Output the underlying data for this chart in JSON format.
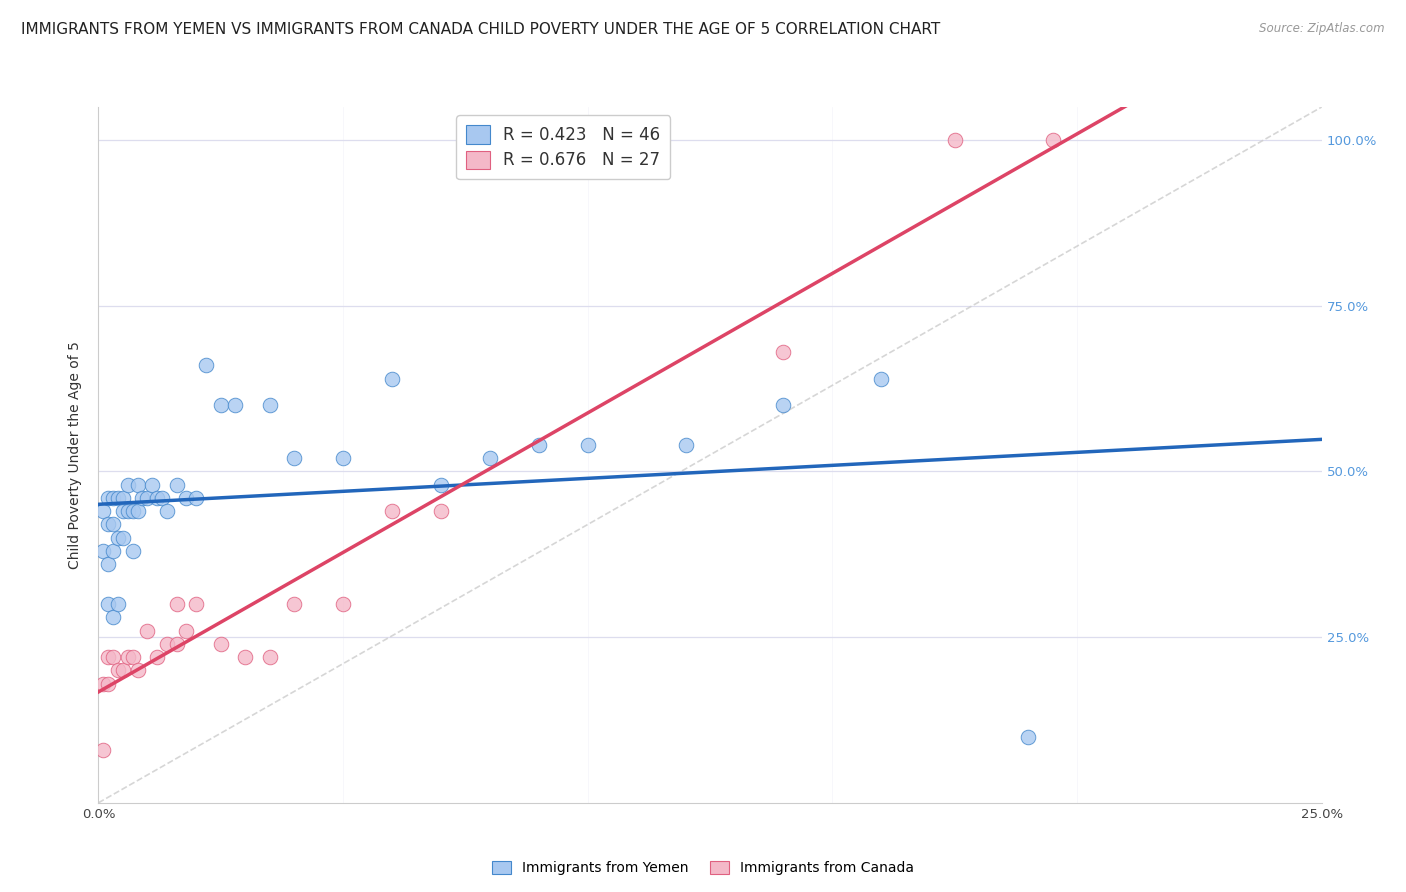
{
  "title": "IMMIGRANTS FROM YEMEN VS IMMIGRANTS FROM CANADA CHILD POVERTY UNDER THE AGE OF 5 CORRELATION CHART",
  "source": "Source: ZipAtlas.com",
  "ylabel": "Child Poverty Under the Age of 5",
  "xlim": [
    0.0,
    0.25
  ],
  "ylim": [
    0.0,
    1.05
  ],
  "legend_R_yemen": "0.423",
  "legend_N_yemen": "46",
  "legend_R_canada": "0.676",
  "legend_N_canada": "27",
  "blue_fill": "#A8C8F0",
  "blue_edge": "#4488CC",
  "pink_fill": "#F4B8C8",
  "pink_edge": "#E06080",
  "blue_line": "#2266BB",
  "pink_line": "#DD4466",
  "diag_color": "#CCCCCC",
  "bg_color": "#FFFFFF",
  "grid_color": "#DDDDEE",
  "yemen_x": [
    0.001,
    0.001,
    0.002,
    0.002,
    0.002,
    0.003,
    0.003,
    0.003,
    0.004,
    0.004,
    0.005,
    0.005,
    0.005,
    0.006,
    0.006,
    0.007,
    0.007,
    0.008,
    0.008,
    0.009,
    0.01,
    0.011,
    0.012,
    0.013,
    0.014,
    0.016,
    0.018,
    0.02,
    0.022,
    0.025,
    0.028,
    0.035,
    0.04,
    0.05,
    0.06,
    0.07,
    0.08,
    0.09,
    0.1,
    0.12,
    0.14,
    0.16,
    0.19,
    0.002,
    0.003,
    0.004
  ],
  "yemen_y": [
    0.44,
    0.38,
    0.46,
    0.42,
    0.36,
    0.46,
    0.42,
    0.38,
    0.46,
    0.4,
    0.46,
    0.44,
    0.4,
    0.48,
    0.44,
    0.44,
    0.38,
    0.48,
    0.44,
    0.46,
    0.46,
    0.48,
    0.46,
    0.46,
    0.44,
    0.48,
    0.46,
    0.46,
    0.66,
    0.6,
    0.6,
    0.6,
    0.52,
    0.52,
    0.64,
    0.48,
    0.52,
    0.54,
    0.54,
    0.54,
    0.6,
    0.64,
    0.1,
    0.3,
    0.28,
    0.3
  ],
  "canada_x": [
    0.001,
    0.001,
    0.002,
    0.002,
    0.003,
    0.004,
    0.005,
    0.006,
    0.007,
    0.008,
    0.01,
    0.012,
    0.014,
    0.016,
    0.016,
    0.018,
    0.02,
    0.025,
    0.03,
    0.035,
    0.04,
    0.05,
    0.06,
    0.07,
    0.14,
    0.175,
    0.195
  ],
  "canada_y": [
    0.08,
    0.18,
    0.18,
    0.22,
    0.22,
    0.2,
    0.2,
    0.22,
    0.22,
    0.2,
    0.26,
    0.22,
    0.24,
    0.3,
    0.24,
    0.26,
    0.3,
    0.24,
    0.22,
    0.22,
    0.3,
    0.3,
    0.44,
    0.44,
    0.68,
    1.0,
    1.0
  ]
}
